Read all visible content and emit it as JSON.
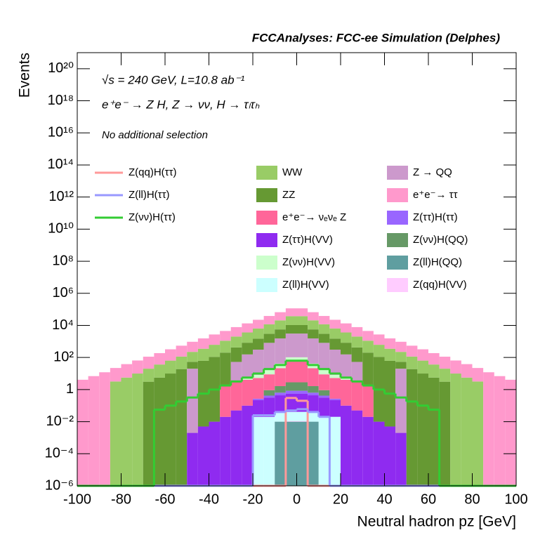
{
  "chart_data": {
    "type": "histogram",
    "title": "FCCAnalyses: FCC-ee Simulation (Delphes)",
    "annotations": [
      "√s = 240 GeV, L=10.8 ab⁻¹",
      "e⁺e⁻ → Z H, Z → νν, H → τₗτₕ",
      "No additional selection"
    ],
    "xlabel": "Neutral hadron pz [GeV]",
    "ylabel": "Events",
    "log_y": true,
    "stacked": true,
    "grid": false,
    "xlim": [
      -100,
      100
    ],
    "ylim": [
      1e-06,
      1e+21
    ],
    "xticks": [
      -100,
      -80,
      -60,
      -40,
      -20,
      0,
      20,
      40,
      60,
      80,
      100
    ],
    "yticks": [
      {
        "value": 1e-06,
        "label": "10⁻⁶"
      },
      {
        "value": 0.0001,
        "label": "10⁻⁴"
      },
      {
        "value": 0.01,
        "label": "10⁻²"
      },
      1,
      {
        "value": 100.0,
        "label": "10²"
      },
      {
        "value": 10000.0,
        "label": "10⁴"
      },
      {
        "value": 1000000.0,
        "label": "10⁶"
      },
      {
        "value": 100000000.0,
        "label": "10⁸"
      },
      {
        "value": 10000000000.0,
        "label": "10¹⁰"
      },
      {
        "value": 1000000000000.0,
        "label": "10¹²"
      },
      {
        "value": 100000000000000.0,
        "label": "10¹⁴"
      },
      {
        "value": 1e+16,
        "label": "10¹⁶"
      },
      {
        "value": 1e+18,
        "label": "10¹⁸"
      },
      {
        "value": 1e+20,
        "label": "10²⁰"
      }
    ],
    "bins": [
      -100,
      -95,
      -90,
      -85,
      -80,
      -75,
      -70,
      -65,
      -60,
      -55,
      -50,
      -45,
      -40,
      -35,
      -30,
      -25,
      -20,
      -15,
      -10,
      -5,
      0,
      5,
      10,
      15,
      20,
      25,
      30,
      35,
      40,
      45,
      50,
      55,
      60,
      65,
      70,
      75,
      80,
      85,
      90,
      95,
      100
    ],
    "series": [
      {
        "name": "Z(ll)H(QQ)",
        "color": "#5f9ea0",
        "values": [
          0,
          0,
          0,
          0,
          0,
          0,
          0,
          0,
          0,
          0,
          0,
          0,
          0,
          0,
          0,
          0,
          0,
          0,
          0.01,
          0.01,
          0.01,
          0.01,
          0,
          0,
          0,
          0,
          0,
          0,
          0,
          0,
          0,
          0,
          0,
          0,
          0,
          0,
          0,
          0,
          0,
          0
        ]
      },
      {
        "name": "Z(qq)H(VV)",
        "color": "#ffccff",
        "values": [
          0,
          0,
          0,
          0,
          0,
          0,
          0,
          0,
          0,
          0,
          0,
          0,
          0,
          0,
          0,
          0,
          0,
          0,
          0,
          0.001,
          0.001,
          0,
          0,
          0,
          0,
          0,
          0,
          0,
          0,
          0,
          0,
          0,
          0,
          0,
          0,
          0,
          0,
          0,
          0,
          0
        ]
      },
      {
        "name": "Z(ll)H(VV)",
        "color": "#ccffff",
        "values": [
          0,
          0,
          0,
          0,
          0,
          0,
          0,
          0,
          0,
          0,
          0,
          0,
          0,
          0,
          0,
          0,
          0.02,
          0.02,
          0.03,
          0.03,
          0.03,
          0.03,
          0.02,
          0.02,
          0,
          0,
          0,
          0,
          0,
          0,
          0,
          0,
          0,
          0,
          0,
          0,
          0,
          0,
          0,
          0
        ]
      },
      {
        "name": "Z(ττ)H(VV)",
        "color": "#8f2bf0",
        "values": [
          0,
          0,
          0,
          0,
          0,
          0,
          0,
          0,
          0,
          0,
          0.002,
          0.005,
          0.01,
          0.02,
          0.05,
          0.1,
          0.2,
          0.3,
          0.4,
          0.5,
          0.5,
          0.4,
          0.3,
          0.2,
          0.1,
          0.05,
          0.02,
          0.01,
          0.005,
          0.002,
          0,
          0,
          0,
          0,
          0,
          0,
          0,
          0,
          0,
          0
        ]
      },
      {
        "name": "Z(ττ)H(ττ)",
        "color": "#9966ff",
        "values": [
          0,
          0,
          0,
          0,
          0,
          0,
          0,
          0,
          0,
          0,
          0,
          0,
          0,
          0,
          0,
          0,
          0.05,
          0.1,
          0.2,
          0.3,
          0.3,
          0.2,
          0.1,
          0.05,
          0,
          0,
          0,
          0,
          0,
          0,
          0,
          0,
          0,
          0,
          0,
          0,
          0,
          0,
          0,
          0
        ]
      },
      {
        "name": "Z(νν)H(QQ)",
        "color": "#669966",
        "values": [
          0,
          0,
          0,
          0,
          0,
          0,
          0,
          0,
          0,
          0,
          0,
          0,
          0,
          0,
          0,
          0,
          0,
          0.5,
          1,
          2,
          2,
          1,
          0.5,
          0,
          0,
          0,
          0,
          0,
          0,
          0,
          0,
          0,
          0,
          0,
          0,
          0,
          0,
          0,
          0,
          0
        ]
      },
      {
        "name": "e⁺e⁻→ νₑνₑ Z",
        "color": "#ff6699",
        "values": [
          0,
          0,
          0,
          0,
          0,
          0,
          0,
          0,
          0,
          0,
          0,
          0,
          0,
          2,
          3,
          4,
          5,
          8,
          20,
          60,
          60,
          20,
          8,
          5,
          4,
          3,
          2,
          0,
          0,
          0,
          0,
          0,
          0,
          0,
          0,
          0,
          0,
          0,
          0,
          0
        ]
      },
      {
        "name": "Z(νν)H(VV)",
        "color": "#ccffcc",
        "values": [
          0,
          0,
          0,
          0,
          0,
          0,
          0,
          0,
          0,
          0,
          0,
          0,
          0,
          0,
          0,
          1,
          3,
          8,
          20,
          40,
          40,
          20,
          8,
          3,
          1,
          0,
          0,
          0,
          0,
          0,
          0,
          0,
          0,
          0,
          0,
          0,
          0,
          0,
          0,
          0
        ]
      },
      {
        "name": "Z → QQ",
        "color": "#cc99cc",
        "values": [
          0,
          0,
          0,
          0,
          0,
          0,
          0,
          0,
          0,
          0,
          20,
          0,
          0,
          0,
          50,
          150,
          300,
          800,
          1500,
          3000,
          3000,
          1500,
          800,
          300,
          150,
          50,
          0,
          0,
          0,
          20,
          0,
          0,
          0,
          0,
          0,
          0,
          0,
          0,
          0,
          0
        ]
      },
      {
        "name": "ZZ",
        "color": "#669933",
        "values": [
          0,
          0,
          0,
          0,
          0,
          0,
          3.1,
          5.6,
          10,
          19,
          34,
          62,
          110,
          200,
          370,
          680,
          1200,
          2200,
          4100,
          7400,
          7400,
          4100,
          2200,
          1200,
          680,
          370,
          200,
          110,
          62,
          34,
          19,
          10,
          5.6,
          3.1,
          0,
          0,
          0,
          0,
          0,
          0
        ]
      },
      {
        "name": "WW",
        "color": "#99cc66",
        "values": [
          0,
          0,
          0,
          3.2,
          5.6,
          10,
          17,
          31,
          54,
          95,
          170,
          290,
          510,
          910,
          1600,
          2800,
          4900,
          8700,
          15000,
          27000,
          27000,
          15000,
          8700,
          4900,
          2800,
          1600,
          910,
          510,
          290,
          170,
          95,
          54,
          31,
          17,
          10,
          5.6,
          3.2,
          0,
          0,
          0
        ]
      },
      {
        "name": "e⁺e⁻→ ττ",
        "color": "#ff99cc",
        "values": [
          4.1,
          6.9,
          12,
          19,
          33,
          55,
          92,
          150,
          260,
          430,
          730,
          1200,
          2100,
          3400,
          5800,
          9700,
          16000,
          27000,
          46000,
          78000,
          78000,
          46000,
          27000,
          16000,
          9700,
          5800,
          3400,
          2100,
          1200,
          730,
          430,
          260,
          150,
          92,
          55,
          33,
          19,
          12,
          6.9,
          4.1
        ]
      }
    ],
    "signal_series": [
      {
        "name": "Z(qq)H(ττ)",
        "color": "#ff9999",
        "values": [
          0,
          0,
          0,
          0,
          0,
          0,
          0,
          0,
          0,
          0,
          0,
          0,
          0,
          0,
          0,
          0,
          0,
          0,
          0,
          0.3,
          0.2,
          0,
          0,
          0,
          0,
          0,
          0,
          0,
          0,
          0,
          0,
          0,
          0,
          0,
          0,
          0,
          0,
          0,
          0,
          0
        ]
      },
      {
        "name": "Z(ll)H(ττ)",
        "color": "#9999ff",
        "values": [
          0,
          0,
          0,
          0,
          0,
          0,
          0,
          0,
          0,
          0,
          0,
          0,
          0,
          0,
          0,
          0,
          0.025,
          0.025,
          0.04,
          0.05,
          0.06,
          0.04,
          0.02,
          0,
          0,
          0,
          0,
          0,
          0,
          0,
          0,
          0,
          0,
          0,
          0,
          0,
          0,
          0,
          0,
          0
        ]
      },
      {
        "name": "Z(νν)H(ττ)",
        "color": "#33cc33",
        "values": [
          0,
          0,
          0,
          0,
          0,
          0,
          0,
          0.056,
          0.1,
          0.18,
          0.32,
          0.56,
          1,
          1.8,
          3.2,
          5.6,
          10,
          19,
          34,
          63,
          63,
          34,
          19,
          10,
          5.6,
          3.2,
          1.8,
          1,
          0.56,
          0.32,
          0.18,
          0.1,
          0.056,
          0,
          0,
          0,
          0,
          0,
          0,
          0
        ]
      }
    ]
  }
}
